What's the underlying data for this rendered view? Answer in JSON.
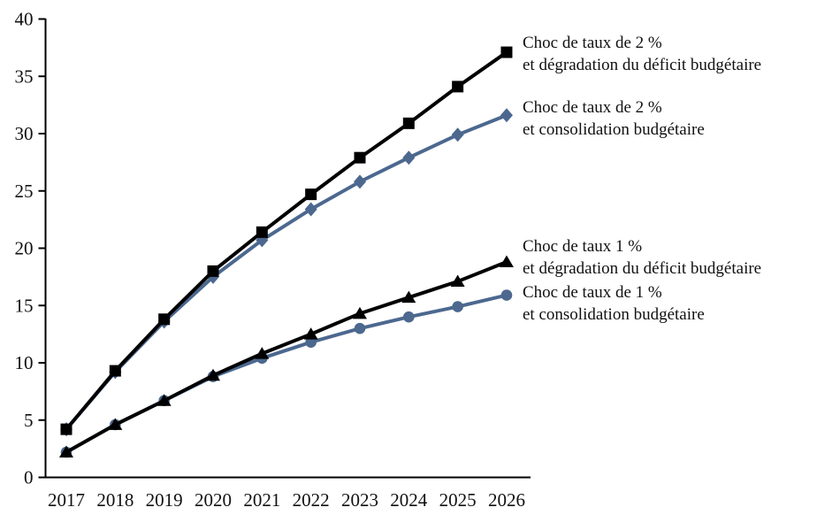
{
  "chart_data": {
    "type": "line",
    "x": [
      "2017",
      "2018",
      "2019",
      "2020",
      "2021",
      "2022",
      "2023",
      "2024",
      "2025",
      "2026"
    ],
    "xlabel": "",
    "ylabel": "",
    "ylim": [
      0,
      40
    ],
    "yticks": [
      0,
      5,
      10,
      15,
      20,
      25,
      30,
      35,
      40
    ],
    "grid": false,
    "legend_position": "right-annotations",
    "background_color": "#ffffff",
    "axis_color": "#000000",
    "series": [
      {
        "name": "Choc de taux de 2 % et dégradation du déficit budgétaire",
        "label_lines": [
          "Choc de taux de 2 %",
          "et dégradation du déficit budgétaire"
        ],
        "marker": "square",
        "color": "#000000",
        "values": [
          4.2,
          9.3,
          13.8,
          18.0,
          21.4,
          24.7,
          27.9,
          30.9,
          34.1,
          37.1
        ]
      },
      {
        "name": "Choc de taux de 2 % et consolidation budgétaire",
        "label_lines": [
          "Choc de taux de 2 %",
          "et consolidation budgétaire"
        ],
        "marker": "diamond",
        "color": "#4c688f",
        "values": [
          4.2,
          9.2,
          13.6,
          17.5,
          20.7,
          23.4,
          25.8,
          27.9,
          29.9,
          31.6
        ]
      },
      {
        "name": "Choc de taux 1 % et dégradation du déficit budgétaire",
        "label_lines": [
          "Choc de taux 1 %",
          "et dégradation du déficit budgétaire"
        ],
        "marker": "triangle",
        "color": "#000000",
        "values": [
          2.2,
          4.6,
          6.7,
          8.9,
          10.8,
          12.5,
          14.3,
          15.7,
          17.1,
          18.8
        ]
      },
      {
        "name": "Choc de taux de 1 % et consolidation budgétaire",
        "label_lines": [
          "Choc de taux de 1 %",
          "et consolidation budgétaire"
        ],
        "marker": "circle",
        "color": "#4c688f",
        "values": [
          2.2,
          4.6,
          6.7,
          8.8,
          10.4,
          11.8,
          13.0,
          14.0,
          14.9,
          15.9
        ]
      }
    ]
  }
}
